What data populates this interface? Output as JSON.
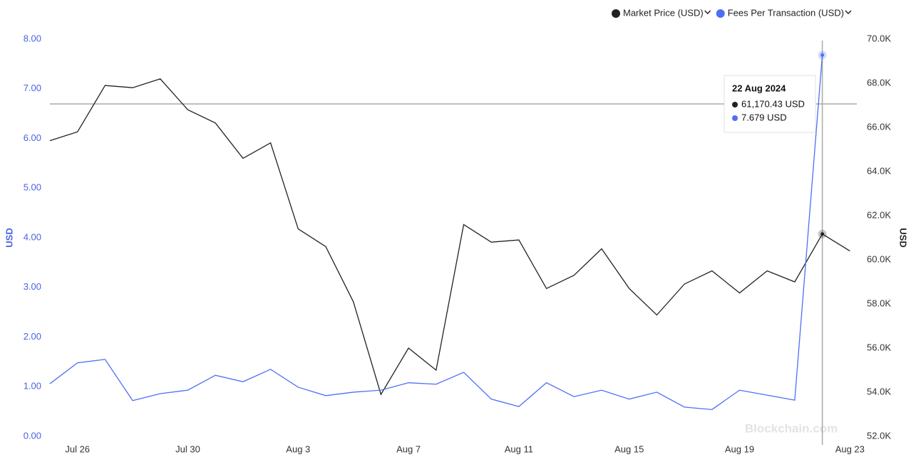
{
  "chart_data": {
    "type": "line",
    "categories": [
      null,
      "Jul 26",
      null,
      null,
      null,
      "Jul 30",
      null,
      null,
      null,
      "Aug 3",
      null,
      null,
      null,
      "Aug 7",
      null,
      null,
      null,
      "Aug 11",
      null,
      null,
      null,
      "Aug 15",
      null,
      null,
      null,
      "Aug 19",
      null,
      null,
      null,
      "Aug 23"
    ],
    "series": [
      {
        "name": "Market Price (USD)",
        "color": "#222222",
        "axis": "y2",
        "values": [
          65400,
          65800,
          67900,
          67800,
          68200,
          66800,
          66200,
          64600,
          65300,
          61400,
          60600,
          58100,
          53900,
          56000,
          55000,
          61600,
          60800,
          60900,
          58700,
          59300,
          60500,
          58700,
          57500,
          58900,
          59500,
          58500,
          59500,
          59000,
          61170.43,
          60400
        ]
      },
      {
        "name": "Fees Per Transaction (USD)",
        "color": "#4f6ef7",
        "values": [
          1.06,
          1.48,
          1.55,
          0.72,
          0.86,
          0.93,
          1.23,
          1.1,
          1.35,
          0.99,
          0.82,
          0.89,
          0.93,
          1.08,
          1.05,
          1.29,
          0.75,
          0.6,
          1.08,
          0.8,
          0.93,
          0.75,
          0.89,
          0.59,
          0.54,
          0.93,
          0.83,
          0.73,
          7.679,
          null
        ]
      }
    ],
    "ylabel": "USD",
    "y2label": "USD",
    "ylim": [
      0,
      8
    ],
    "yticks": [
      {
        "value": 0,
        "label": "0.00"
      },
      {
        "value": 1,
        "label": "1.00"
      },
      {
        "value": 2,
        "label": "2.00"
      },
      {
        "value": 3,
        "label": "3.00"
      },
      {
        "value": 4,
        "label": "4.00"
      },
      {
        "value": 5,
        "label": "5.00"
      },
      {
        "value": 6,
        "label": "6.00"
      },
      {
        "value": 7,
        "label": "7.00"
      },
      {
        "value": 8,
        "label": "8.00"
      }
    ],
    "y2lim": [
      52000,
      70000
    ],
    "y2ticks": [
      {
        "value": 52000,
        "label": "52.0K"
      },
      {
        "value": 54000,
        "label": "54.0K"
      },
      {
        "value": 56000,
        "label": "56.0K"
      },
      {
        "value": 58000,
        "label": "58.0K"
      },
      {
        "value": 60000,
        "label": "60.0K"
      },
      {
        "value": 62000,
        "label": "62.0K"
      },
      {
        "value": 64000,
        "label": "64.0K"
      },
      {
        "value": 66000,
        "label": "66.0K"
      },
      {
        "value": 68000,
        "label": "68.0K"
      },
      {
        "value": 70000,
        "label": "70.0K"
      }
    ],
    "tooltip": {
      "title": "22 Aug 2024",
      "labels": [
        "61,170.43 USD",
        "7.679 USD"
      ]
    },
    "watermark": "Blockchain.com"
  }
}
